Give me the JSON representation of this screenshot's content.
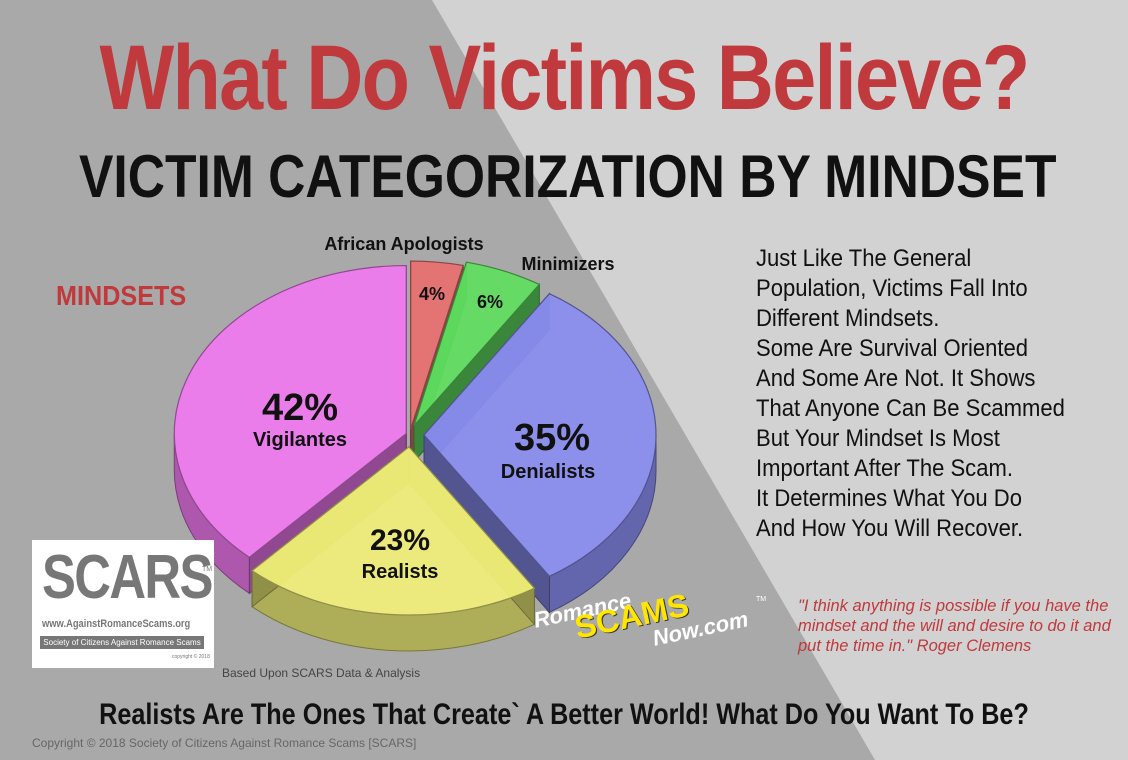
{
  "title": "What Do Victims Believe?",
  "subtitle": "VICTIM CATEGORIZATION BY MINDSET",
  "mindsets_label": "MINDSETS",
  "side_text": [
    "Just Like The General",
    "Population, Victims Fall Into",
    "Different Mindsets.",
    "Some Are Survival Oriented",
    "And Some Are Not. It Shows",
    "That Anyone Can Be Scammed",
    "But Your Mindset Is Most",
    "Important After The Scam.",
    "It Determines What You Do",
    "And How You Will Recover."
  ],
  "quote": "\"I think anything is possible if you have the mindset and the will and desire to do it and put the time in.\" Roger Clemens",
  "logo": {
    "name": "SCARS",
    "tm": "TM",
    "url": "www.AgainstRomanceScams.org",
    "society": "Society of Citizens Against Romance Scams",
    "copyright": "copyright © 2018"
  },
  "based_on": "Based Upon SCARS Data & Analysis",
  "romance_logo": {
    "romance": "Romance",
    "scams": "SCAMS",
    "now": "Now.com",
    "tm": "TM"
  },
  "bottom_line": "Realists Are The Ones That Create` A Better World! What Do You Want To Be?",
  "copyright": "Copyright © 2018 Society of Citizens Against Romance Scams [SCARS]",
  "colors": {
    "accent_red": "#c0393c",
    "bg_dark": "#a9a9a9",
    "bg_light": "#d2d2d2"
  },
  "chart_data": {
    "type": "pie",
    "style": "3d-exploded",
    "categories": [
      "African Apologists",
      "Minimizers",
      "Denialists",
      "Realists",
      "Vigilantes"
    ],
    "values": [
      4,
      6,
      35,
      23,
      42
    ],
    "value_labels": [
      "4%",
      "6%",
      "35%",
      "23%",
      "42%"
    ],
    "colors": [
      "#e8706f",
      "#60e060",
      "#8a8ef0",
      "#f2f07a",
      "#f07af0"
    ],
    "title": "",
    "legend": "none"
  }
}
